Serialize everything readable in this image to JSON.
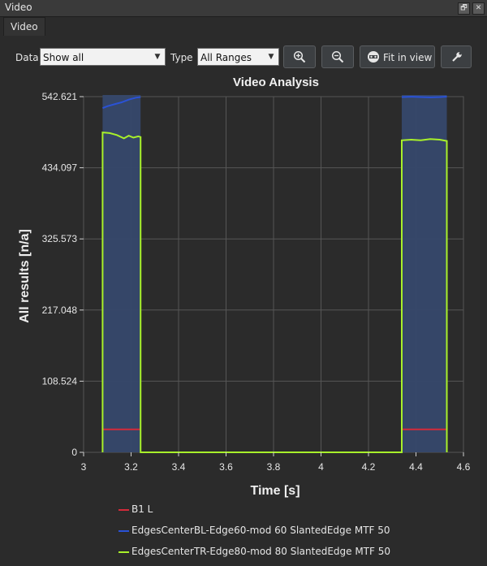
{
  "window": {
    "title": "Video",
    "restore_glyph": "🗗",
    "close_glyph": "✕"
  },
  "tabs": [
    {
      "label": "Video"
    }
  ],
  "toolbar": {
    "data_label": "Data",
    "data_value": "Show all",
    "type_label": "Type",
    "type_value": "All Ranges",
    "fit_label": "Fit in view",
    "dropdown_glyph": "▼"
  },
  "colors": {
    "background": "#2b2b2b",
    "plot_fill": "#36486b",
    "grid": "#565656",
    "b1": "#d42a3a",
    "bl": "#2a52d6",
    "tr": "#a8f02a"
  },
  "chart_data": {
    "type": "line",
    "title": "Video Analysis",
    "xlabel": "Time [s]",
    "ylabel": "All results [n/a]",
    "xlim": [
      3.0,
      4.6
    ],
    "ylim": [
      0,
      542.621
    ],
    "x_ticks": [
      "3",
      "3.2",
      "3.4",
      "3.6",
      "3.8",
      "4",
      "4.2",
      "4.4",
      "4.6"
    ],
    "y_ticks": [
      "0",
      "108.524",
      "217.048",
      "325.573",
      "434.097",
      "542.621"
    ],
    "grid": true,
    "legend_placement": "bottom",
    "series": [
      {
        "name": "B1 L",
        "color": "#d42a3a",
        "segments": [
          [
            [
              3.08,
              35
            ],
            [
              3.24,
              35
            ]
          ],
          [
            [
              4.34,
              35
            ],
            [
              4.53,
              35
            ]
          ]
        ]
      },
      {
        "name": "EdgesCenterBL-Edge60-mod 60 SlantedEdge MTF 50",
        "color": "#2a52d6",
        "segments": [
          [
            [
              3.08,
              525
            ],
            [
              3.1,
              528
            ],
            [
              3.13,
              531
            ],
            [
              3.16,
              534
            ],
            [
              3.19,
              538
            ],
            [
              3.22,
              541
            ],
            [
              3.24,
              542
            ]
          ],
          [
            [
              4.34,
              542
            ],
            [
              4.38,
              542.5
            ],
            [
              4.42,
              542
            ],
            [
              4.46,
              541.5
            ],
            [
              4.5,
              542
            ],
            [
              4.53,
              542.6
            ]
          ]
        ]
      },
      {
        "name": "EdgesCenterTR-Edge80-mod 80 SlantedEdge MTF 50",
        "color": "#a8f02a",
        "x": [
          3.08,
          3.08,
          3.11,
          3.14,
          3.17,
          3.19,
          3.21,
          3.23,
          3.24,
          3.24,
          4.34,
          4.34,
          4.38,
          4.42,
          4.46,
          4.5,
          4.53,
          4.53
        ],
        "y": [
          0,
          488,
          487,
          484,
          479,
          483,
          480,
          482,
          481,
          0,
          0,
          476,
          477,
          476,
          478,
          477,
          475,
          0
        ]
      }
    ],
    "highlight_ranges": [
      [
        3.08,
        3.24
      ],
      [
        4.34,
        4.53
      ]
    ]
  }
}
